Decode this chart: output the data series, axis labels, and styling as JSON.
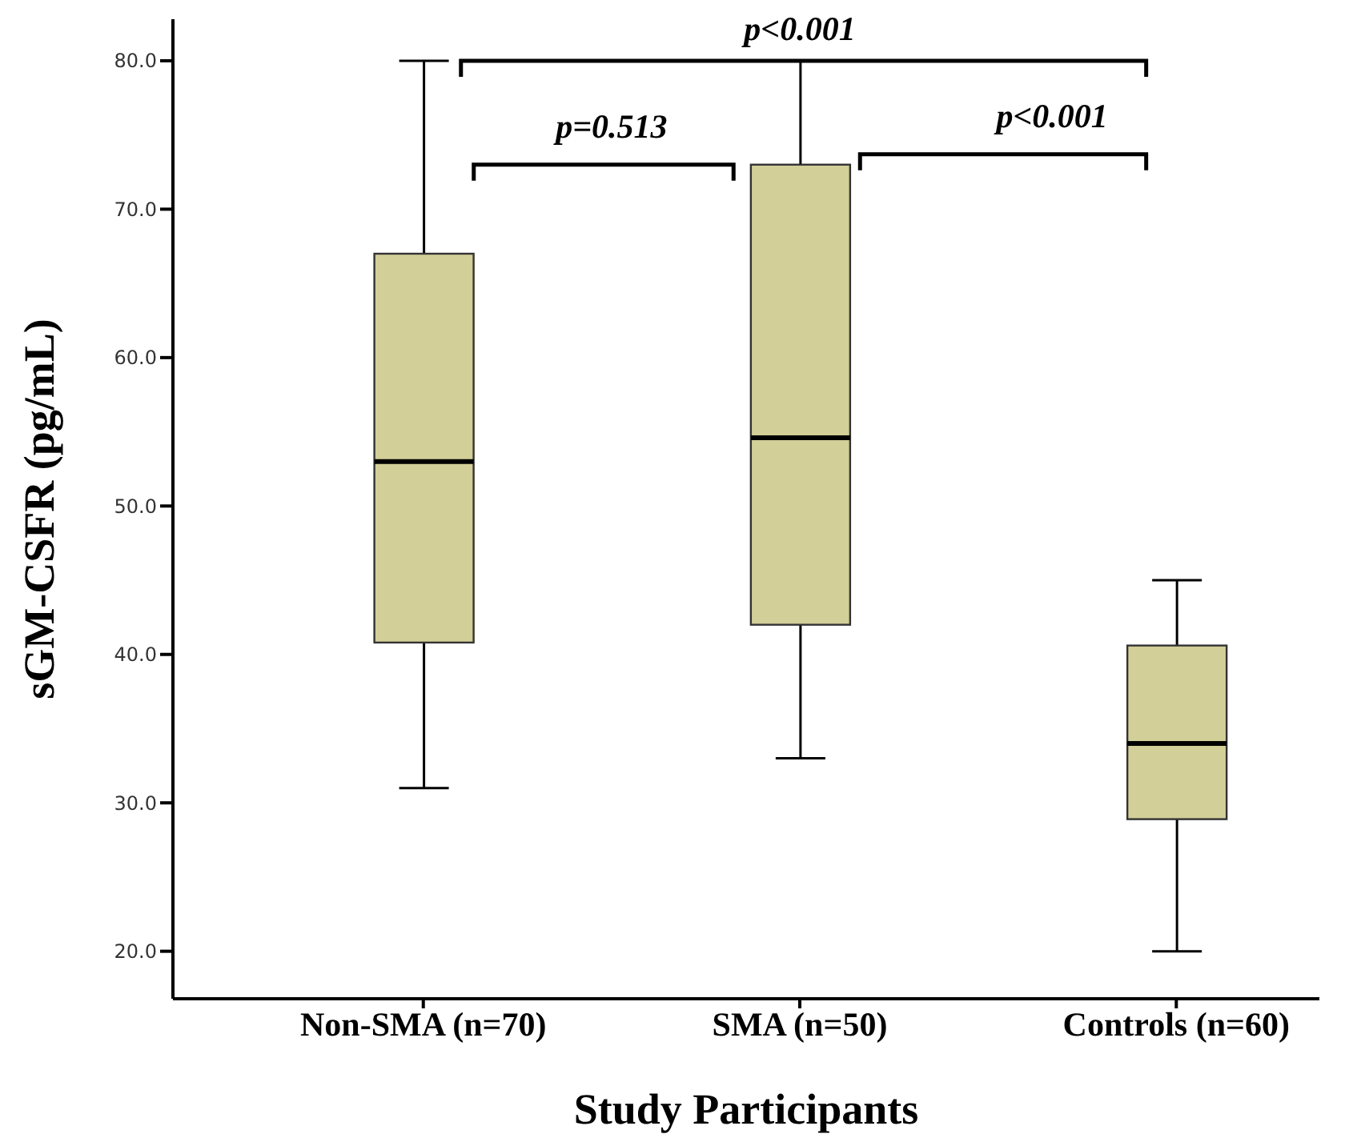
{
  "chart_data": {
    "type": "box",
    "xlabel": "Study Participants",
    "ylabel": "sGM-CSFR (pg/mL)",
    "categories": [
      "Non-SMA (n=70)",
      "SMA (n=50)",
      "Controls (n=60)"
    ],
    "color": "#d3cf98",
    "boxes": [
      {
        "low": 31,
        "q1": 40.8,
        "median": 53,
        "q3": 67,
        "high": 80
      },
      {
        "low": 33,
        "q1": 42,
        "median": 54.6,
        "q3": 73,
        "high": 80
      },
      {
        "low": 20,
        "q1": 28.9,
        "median": 34,
        "q3": 40.6,
        "high": 45
      }
    ],
    "ylim": [
      16.8,
      82.8
    ],
    "yticks": [
      {
        "value": 20,
        "label": "20.0"
      },
      {
        "value": 30,
        "label": "30.0"
      },
      {
        "value": 40,
        "label": "40.0"
      },
      {
        "value": 50,
        "label": "50.0"
      },
      {
        "value": 60,
        "label": "60.0"
      },
      {
        "value": 70,
        "label": "70.0"
      },
      {
        "value": 80,
        "label": "80.0"
      }
    ],
    "annotations": [
      "p<0.001",
      "p=0.513",
      "p<0.001"
    ]
  }
}
